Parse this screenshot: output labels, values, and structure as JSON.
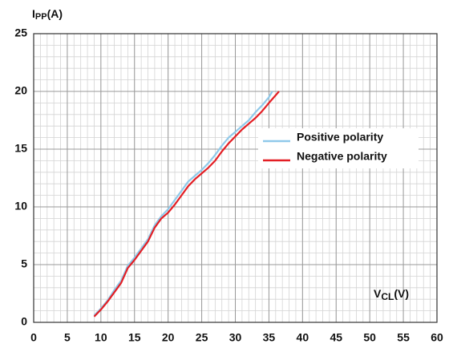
{
  "chart_data": {
    "type": "line",
    "xlabel": [
      "V",
      "CL",
      "(V)"
    ],
    "ylabel": [
      "I",
      "PP",
      "(A)"
    ],
    "xlim": [
      0,
      60
    ],
    "xticks": [
      0,
      5,
      10,
      15,
      20,
      25,
      30,
      35,
      40,
      45,
      50,
      55,
      60
    ],
    "ylim": [
      0,
      25
    ],
    "yticks": [
      0,
      5,
      10,
      15,
      20,
      25
    ],
    "grid": true,
    "minor_grid": true,
    "legend": "right",
    "series": [
      {
        "name": "Positive polarity",
        "color": "#8fc9ea",
        "x": [
          9,
          10,
          11,
          12,
          13,
          14,
          15,
          16,
          17,
          18,
          19,
          20,
          21,
          22,
          23,
          24,
          25,
          26,
          27,
          28,
          29,
          30,
          31,
          32,
          33,
          34,
          35,
          35.5
        ],
        "values": [
          0.6,
          1.2,
          1.9,
          2.8,
          3.6,
          4.9,
          5.6,
          6.4,
          7.2,
          8.4,
          9.2,
          9.8,
          10.6,
          11.4,
          12.2,
          12.7,
          13.2,
          13.8,
          14.5,
          15.3,
          16,
          16.5,
          17,
          17.5,
          18.2,
          18.8,
          19.5,
          20
        ]
      },
      {
        "name": "Negative polarity",
        "color": "#e31e24",
        "x": [
          9,
          10,
          11,
          12,
          13,
          14,
          15,
          16,
          17,
          18,
          19,
          20,
          21,
          22,
          23,
          24,
          25,
          26,
          27,
          28,
          29,
          30,
          31,
          32,
          33,
          34,
          35,
          36.5
        ],
        "values": [
          0.5,
          1.1,
          1.8,
          2.6,
          3.4,
          4.7,
          5.4,
          6.2,
          7,
          8.2,
          9,
          9.5,
          10.2,
          11,
          11.8,
          12.4,
          12.9,
          13.4,
          14,
          14.8,
          15.5,
          16.1,
          16.7,
          17.2,
          17.7,
          18.3,
          19,
          20
        ]
      }
    ]
  }
}
